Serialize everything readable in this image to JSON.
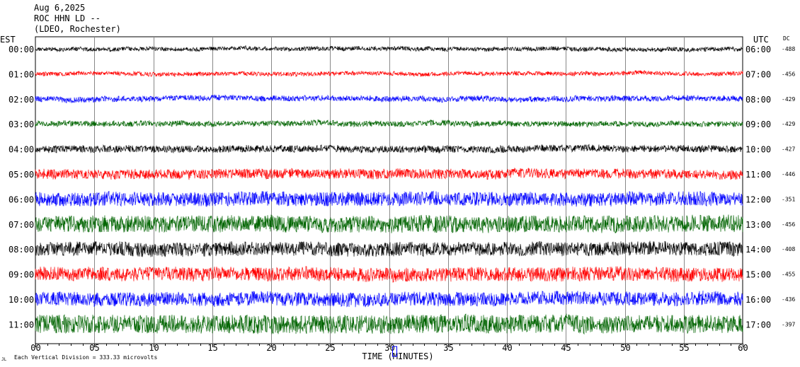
{
  "header": {
    "date": "Aug 6,2025",
    "station": "ROC HHN LD --",
    "network": "(LDEO, Rochester)"
  },
  "labels": {
    "left_zone": "EST",
    "right_zone": "UTC",
    "dc": "DC",
    "footer_note": "Each Vertical Division = 333.33 microvolts",
    "footer_mark": "JL"
  },
  "chart_data": {
    "type": "line",
    "title": "",
    "xlabel": "TIME (MINUTES)",
    "ylabel": "",
    "xlim": [
      0,
      60
    ],
    "x_ticks": [
      "00",
      "05",
      "10",
      "15",
      "20",
      "25",
      "30",
      "35",
      "40",
      "45",
      "50",
      "55",
      "60"
    ],
    "grid": true,
    "legend": "none",
    "rows": [
      {
        "est": "00:00",
        "utc": "06:00",
        "dc": "-488",
        "color": "#000000",
        "amp": 3
      },
      {
        "est": "01:00",
        "utc": "07:00",
        "dc": "-456",
        "color": "#ff0000",
        "amp": 3
      },
      {
        "est": "02:00",
        "utc": "08:00",
        "dc": "-429",
        "color": "#0000ff",
        "amp": 4
      },
      {
        "est": "03:00",
        "utc": "09:00",
        "dc": "-429",
        "color": "#006400",
        "amp": 4
      },
      {
        "est": "04:00",
        "utc": "10:00",
        "dc": "-427",
        "color": "#000000",
        "amp": 5
      },
      {
        "est": "05:00",
        "utc": "11:00",
        "dc": "-446",
        "color": "#ff0000",
        "amp": 7
      },
      {
        "est": "06:00",
        "utc": "12:00",
        "dc": "-351",
        "color": "#0000ff",
        "amp": 10
      },
      {
        "est": "07:00",
        "utc": "13:00",
        "dc": "-456",
        "color": "#006400",
        "amp": 12
      },
      {
        "est": "08:00",
        "utc": "14:00",
        "dc": "-408",
        "color": "#000000",
        "amp": 10
      },
      {
        "est": "09:00",
        "utc": "15:00",
        "dc": "-455",
        "color": "#ff0000",
        "amp": 10
      },
      {
        "est": "10:00",
        "utc": "16:00",
        "dc": "-436",
        "color": "#0000ff",
        "amp": 10
      },
      {
        "est": "11:00",
        "utc": "17:00",
        "dc": "-397",
        "color": "#006400",
        "amp": 13
      }
    ]
  }
}
